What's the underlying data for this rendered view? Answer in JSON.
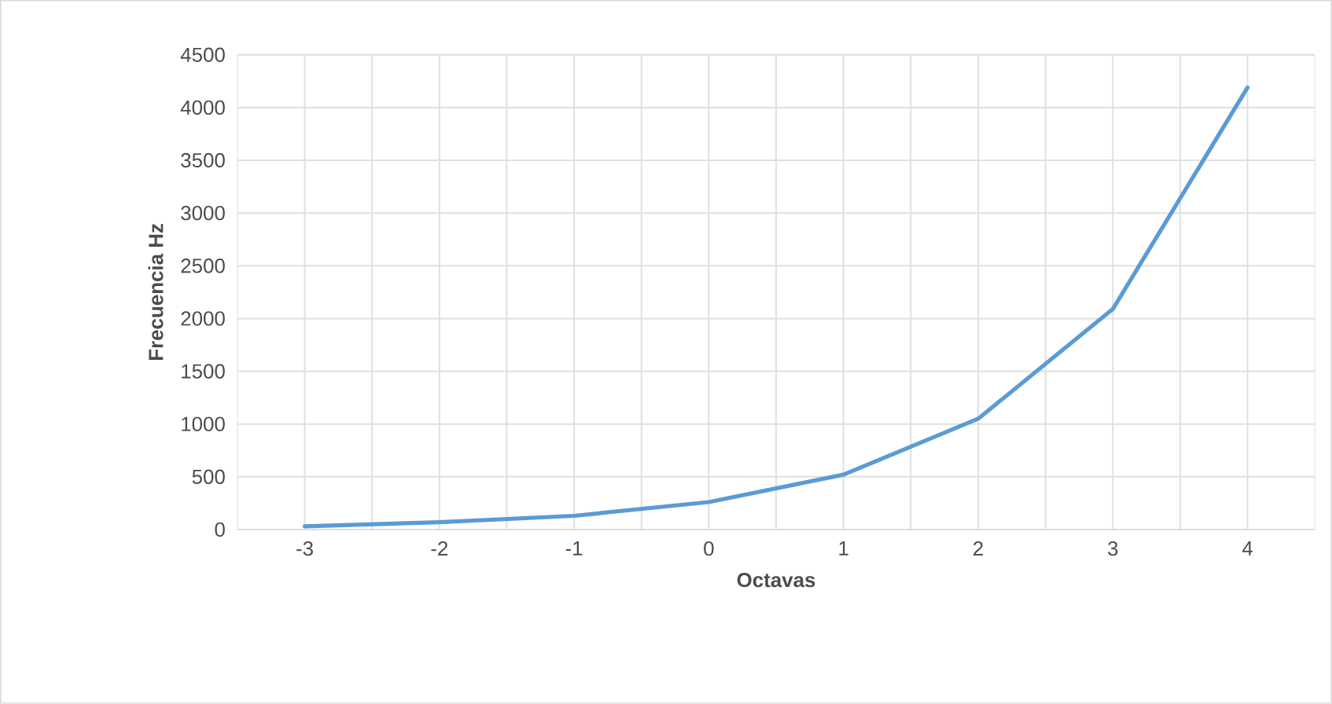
{
  "chart_data": {
    "type": "line",
    "xlabel": "Octavas",
    "ylabel": "Frecuencia Hz",
    "categories": [
      "-3",
      "-2",
      "-1",
      "0",
      "1",
      "2",
      "3",
      "4"
    ],
    "series": [
      {
        "color": "#5b9bd5",
        "values": [
          30,
          70,
          130,
          260,
          520,
          1050,
          2090,
          4190
        ]
      }
    ],
    "ylim": [
      0,
      4500
    ],
    "yticks": [
      0,
      500,
      1000,
      1500,
      2000,
      2500,
      3000,
      3500,
      4000,
      4500
    ],
    "grid": true,
    "marker": "none",
    "line_style": "solid"
  }
}
